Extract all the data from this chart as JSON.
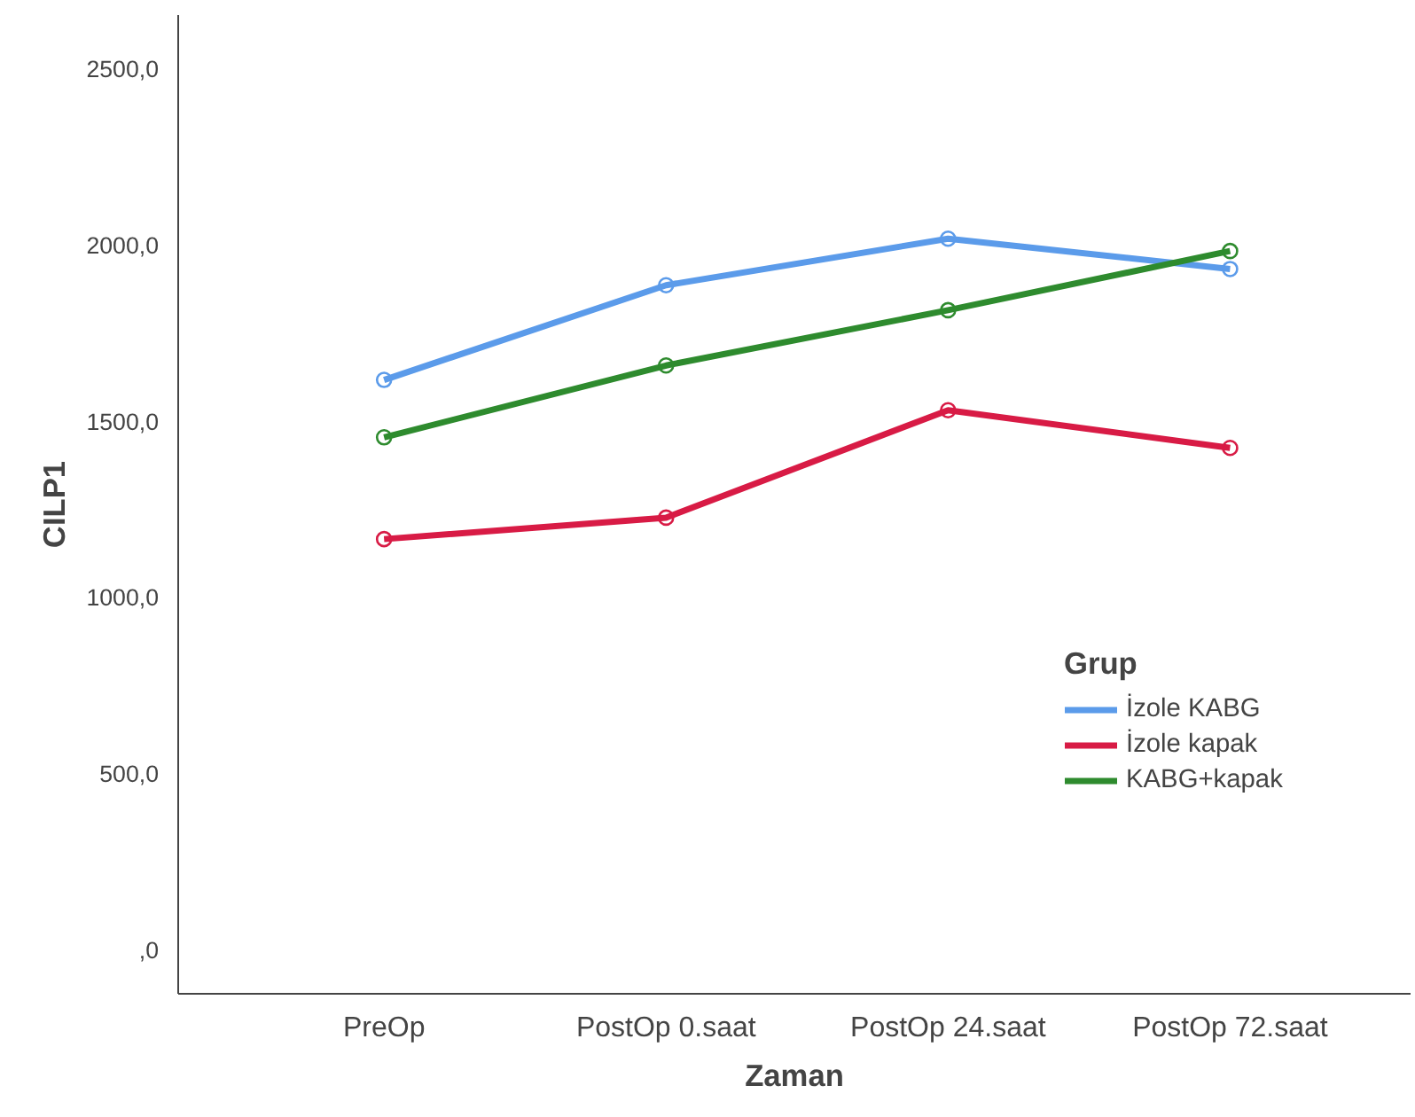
{
  "chart_data": {
    "type": "line",
    "xlabel": "Zaman",
    "ylabel": "CILP1",
    "legend_title": "Grup",
    "categories": [
      "PreOp",
      "PostOp 0.saat",
      "PostOp 24.saat",
      "PostOp 72.saat"
    ],
    "series": [
      {
        "name": "İzole KABG",
        "color": "#5b9bea",
        "values": [
          1616,
          1885,
          2017,
          1931
        ]
      },
      {
        "name": "İzole kapak",
        "color": "#d81b45",
        "values": [
          1164,
          1225,
          1530,
          1423
        ]
      },
      {
        "name": "KABG+kapak",
        "color": "#2e8b2e",
        "values": [
          1453,
          1657,
          1814,
          1982
        ]
      }
    ],
    "ylim": [
      -127,
      2652
    ],
    "yticks": [
      {
        "value": 0,
        "label": ",0"
      },
      {
        "value": 500,
        "label": "500,0"
      },
      {
        "value": 1000,
        "label": "1000,0"
      },
      {
        "value": 1500,
        "label": "1500,0"
      },
      {
        "value": 2000,
        "label": "2000,0"
      },
      {
        "value": 2500,
        "label": "2500,0"
      }
    ],
    "grid": false,
    "legend": "right",
    "marker": "circle",
    "line_style": "solid"
  }
}
